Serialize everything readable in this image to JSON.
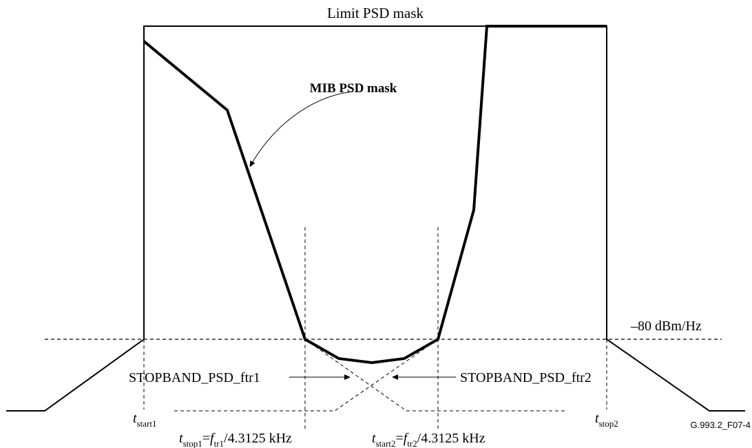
{
  "diagram": {
    "title": "Limit PSD mask",
    "mib_label": "MIB PSD mask",
    "level_label": "–80 dBm/Hz",
    "stopband_left": "STOPBAND_PSD_ftr1",
    "stopband_right": "STOPBAND_PSD_ftr2",
    "figure_id": "G.993.2_F07-4",
    "tstart1": {
      "main": "t",
      "sub": "start1"
    },
    "tstop2": {
      "main": "t",
      "sub": "stop2"
    },
    "tstop1": {
      "t": "t",
      "t_sub": "stop1",
      "eq": "=",
      "f": "f",
      "f_sub": "tr1",
      "rest": "/4.3125 kHz"
    },
    "tstart2": {
      "t": "t",
      "t_sub": "start2",
      "eq": "=",
      "f": "f",
      "f_sub": "tr2",
      "rest": "/4.3125 kHz"
    }
  }
}
